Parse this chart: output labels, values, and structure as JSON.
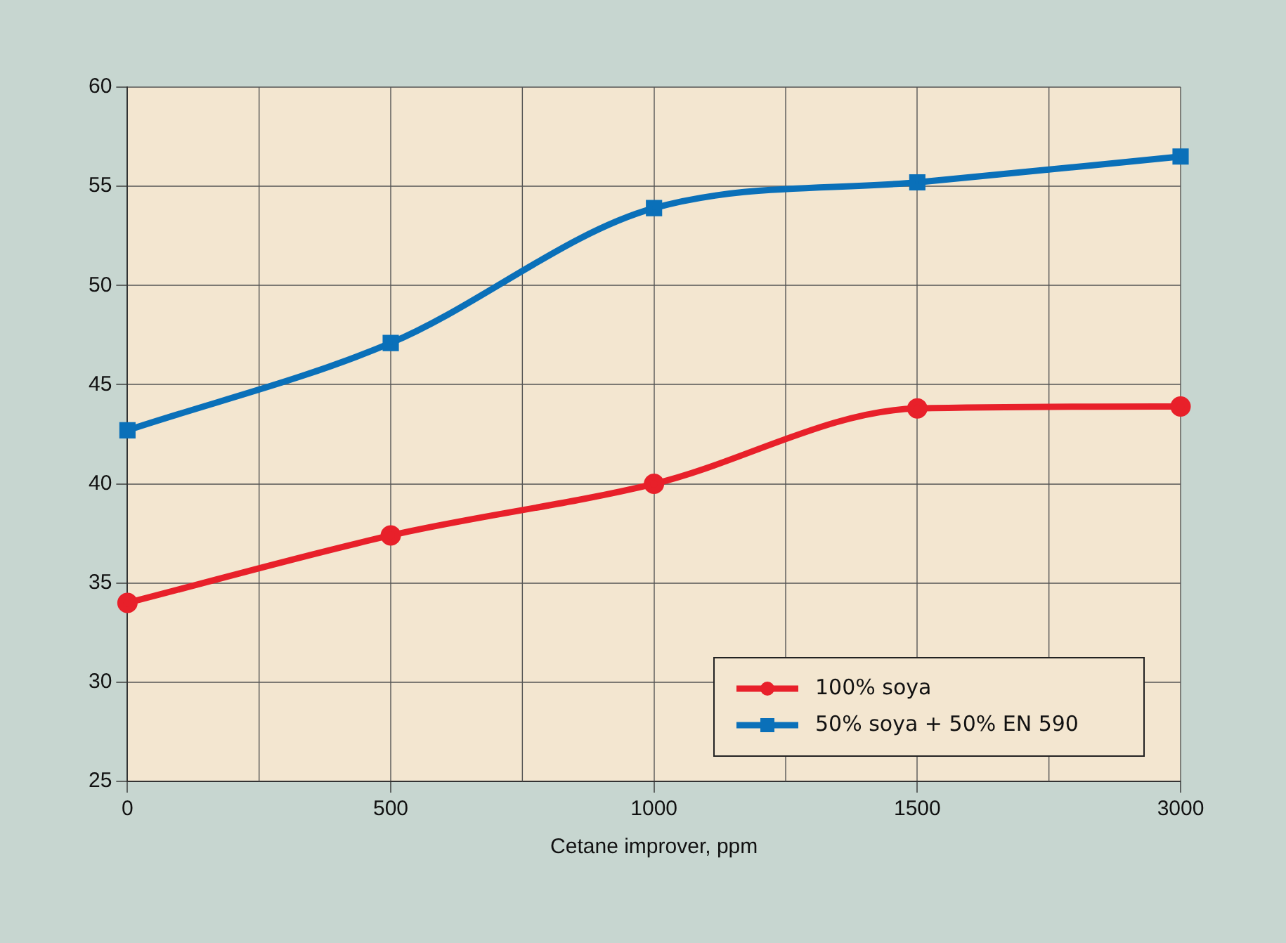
{
  "chart_data": {
    "type": "line",
    "xlabel": "Cetane improver, ppm",
    "categories": [
      "0",
      "500",
      "1000",
      "1500",
      "3000"
    ],
    "series": [
      {
        "name": "100% soya",
        "color": "#e8202a",
        "marker": "circle",
        "values": [
          34,
          37.4,
          40,
          43.8,
          43.9
        ]
      },
      {
        "name": "50% soya + 50% EN 590",
        "color": "#0a70b9",
        "marker": "square",
        "values": [
          42.7,
          47.1,
          53.9,
          55.2,
          56.5
        ]
      }
    ],
    "ylim": [
      25,
      60
    ],
    "yticks": [
      25,
      30,
      35,
      40,
      45,
      50,
      55,
      60
    ],
    "grid": true,
    "legend": "bottom right"
  }
}
